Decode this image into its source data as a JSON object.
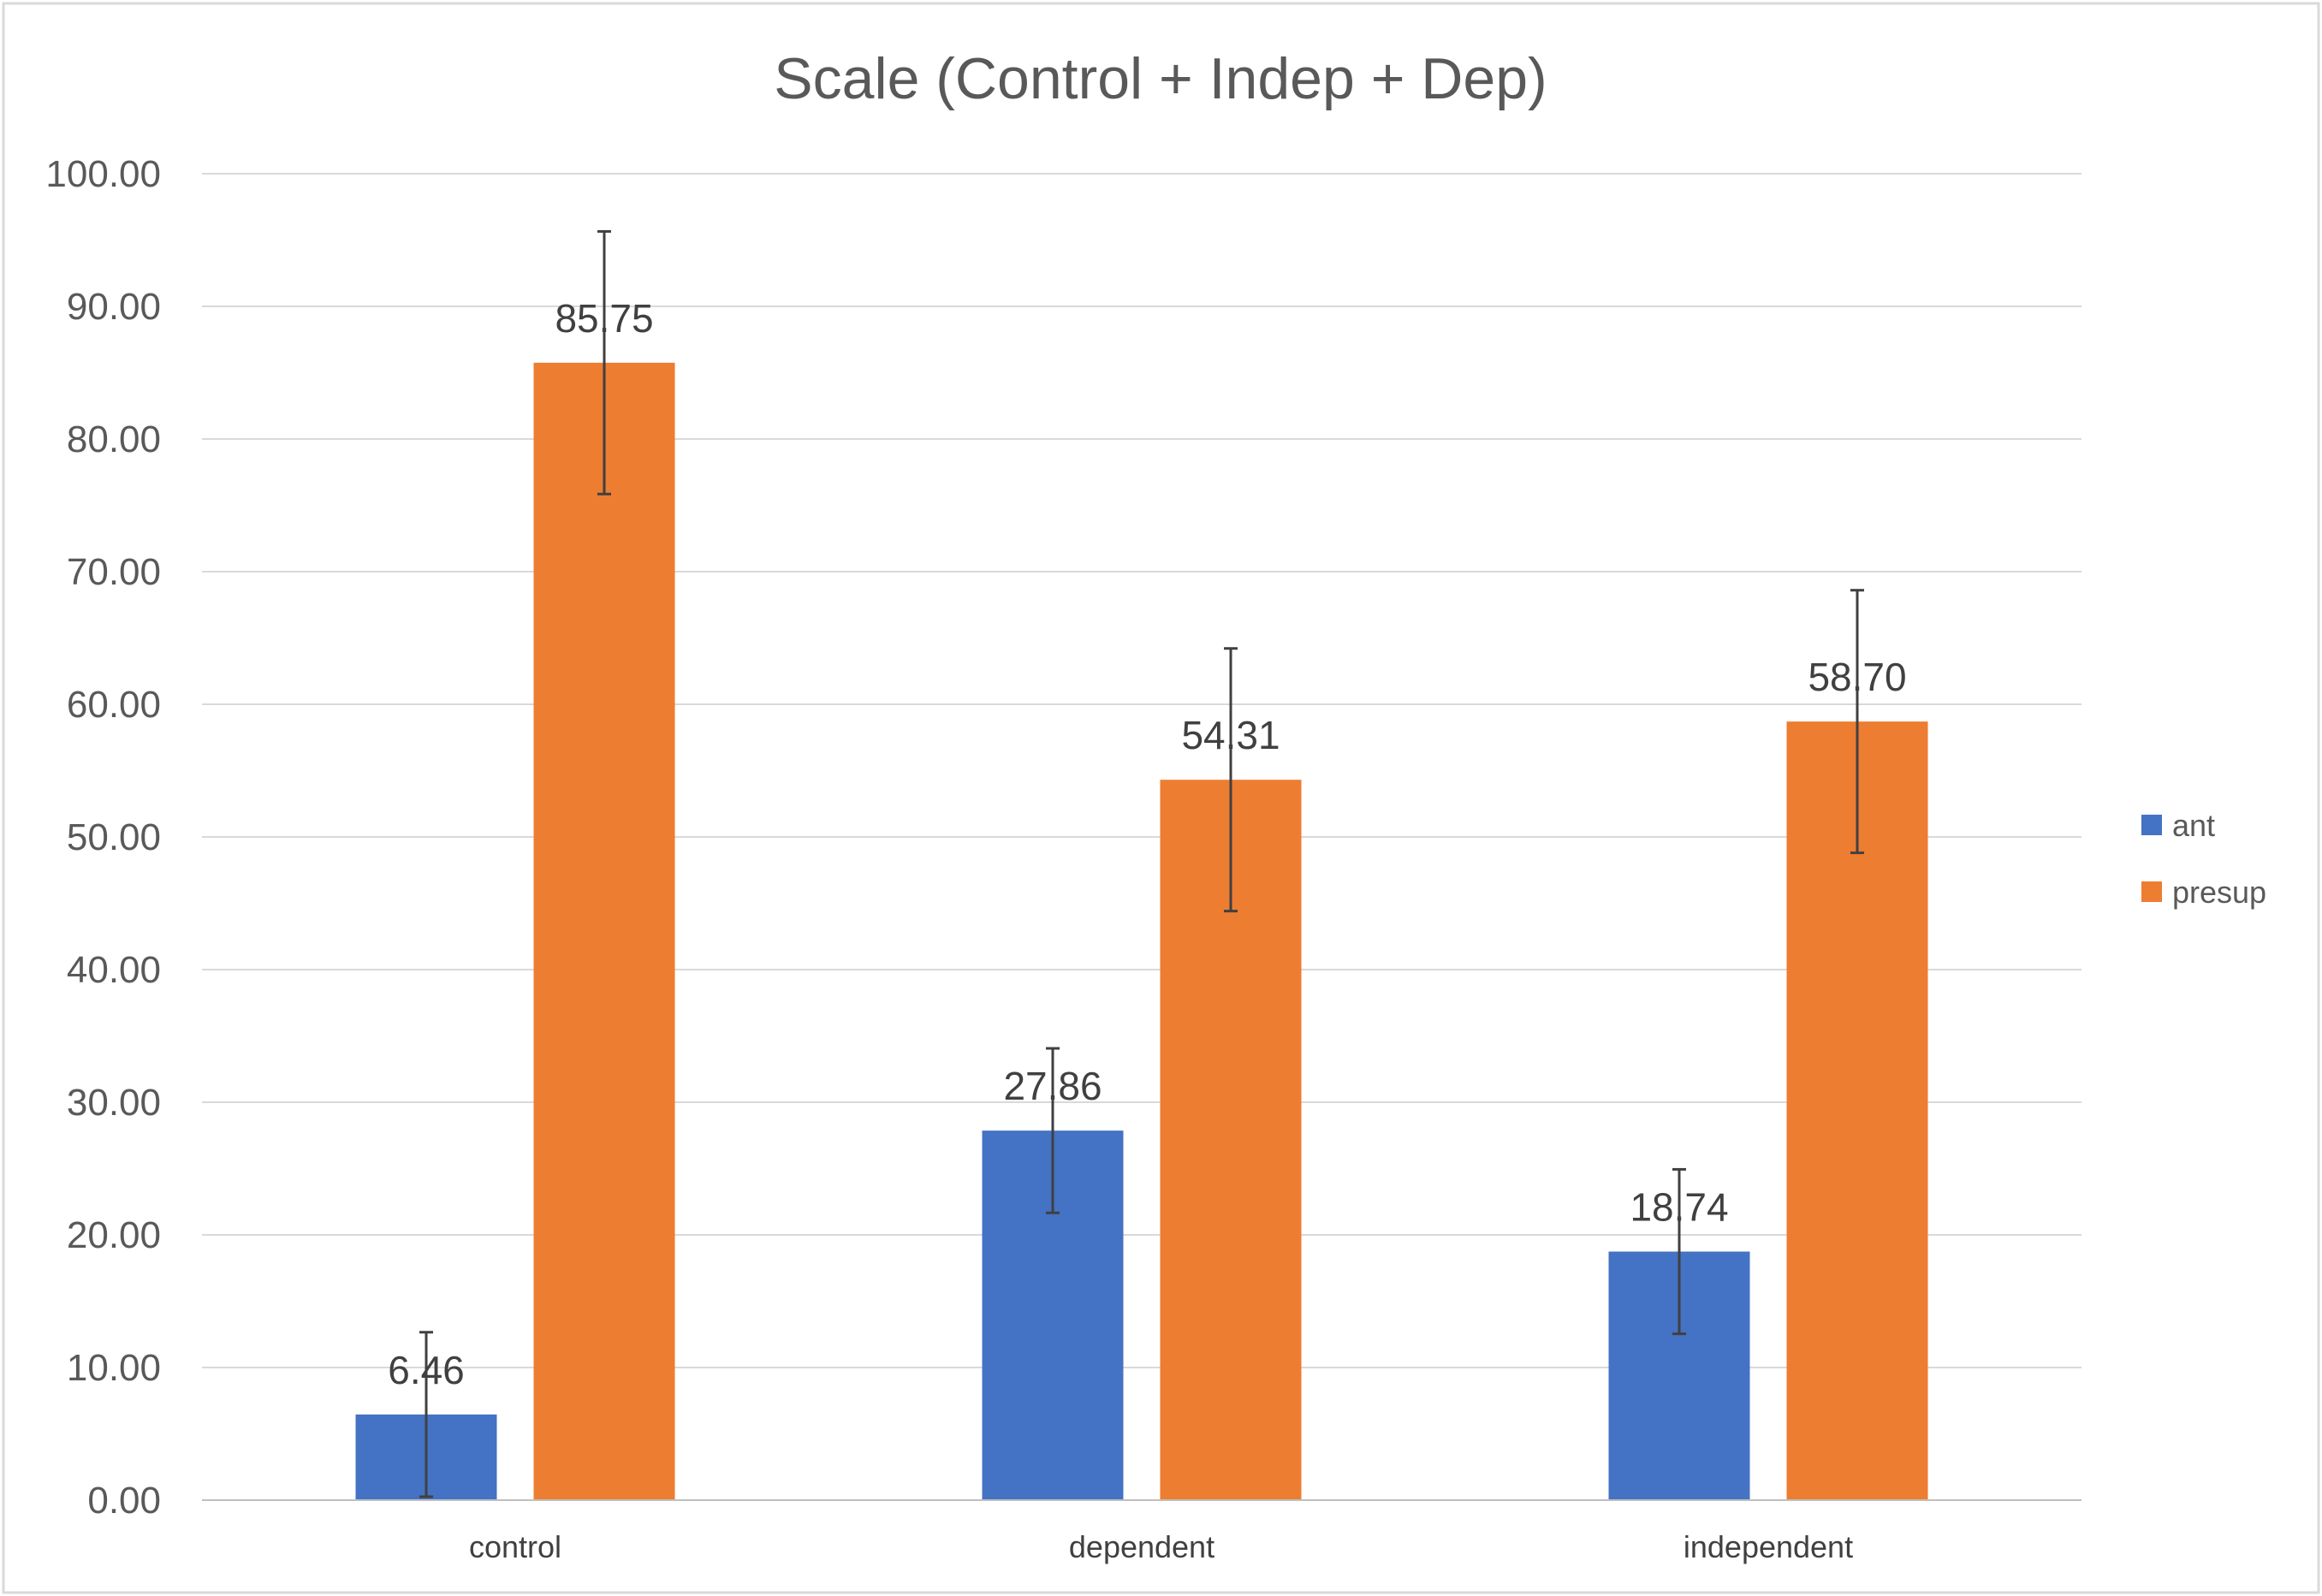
{
  "chart_data": {
    "type": "bar",
    "title": "Scale (Control + Indep + Dep)",
    "xlabel": "",
    "ylabel": "",
    "categories": [
      "control",
      "dependent",
      "independent"
    ],
    "ylim": [
      0,
      100
    ],
    "ytick_step": 10,
    "ytick_labels": [
      "0.00",
      "10.00",
      "20.00",
      "30.00",
      "40.00",
      "50.00",
      "60.00",
      "70.00",
      "80.00",
      "90.00",
      "100.00"
    ],
    "grid": true,
    "legend_position": "right",
    "series": [
      {
        "name": "ant",
        "color": "#4472C4",
        "values": [
          6.46,
          27.86,
          18.74
        ],
        "labels": [
          "6.46",
          "27.86",
          "18.74"
        ],
        "errors": [
          6.2,
          6.2,
          6.2
        ]
      },
      {
        "name": "presup",
        "color": "#ED7D31",
        "values": [
          85.75,
          54.31,
          58.7
        ],
        "labels": [
          "85.75",
          "54.31",
          "58.70"
        ],
        "errors": [
          9.9,
          9.9,
          9.9
        ]
      }
    ]
  }
}
